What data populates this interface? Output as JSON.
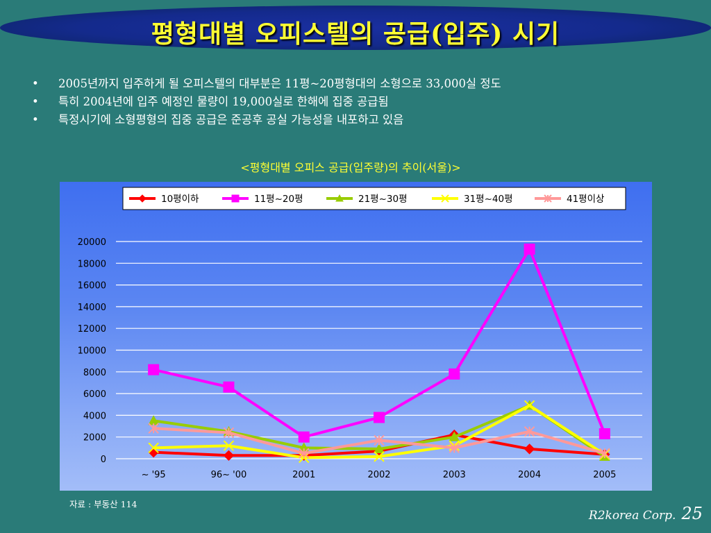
{
  "slide": {
    "title": "평형대별 오피스텔의 공급(입주) 시기",
    "bullets": [
      "2005년까지 입주하게 될 오피스텔의 대부분은 11평~20평형대의 소형으로 33,000실 정도",
      "특히 2004년에 입주 예정인 물량이 19,000실로 한해에 집중 공급됨",
      "특정시기에 소형평형의 집중 공급은 준공후 공실 가능성을 내포하고 있음"
    ],
    "source": "자료 : 부동산 114",
    "footer_corp": "R2korea Corp.",
    "page_number": "25"
  },
  "colors": {
    "background": "#2a7b78",
    "title_text": "#ffff33",
    "title_band": "#142a8c"
  },
  "chart_data": {
    "type": "line",
    "title": "<평형대별 오피스 공급(입주량)의 추이(서울)>",
    "categories": [
      "~ '95",
      "96~ '00",
      "2001",
      "2002",
      "2003",
      "2004",
      "2005"
    ],
    "ylim": [
      0,
      20000
    ],
    "yticks": [
      0,
      2000,
      4000,
      6000,
      8000,
      10000,
      12000,
      14000,
      16000,
      18000,
      20000
    ],
    "grid": true,
    "legend_position": "top",
    "series": [
      {
        "name": "10평이하",
        "color": "#ff0000",
        "marker": "diamond",
        "values": [
          600,
          300,
          300,
          700,
          2200,
          900,
          400
        ]
      },
      {
        "name": "11평~20평",
        "color": "#ff00ff",
        "marker": "square",
        "values": [
          8200,
          6600,
          2000,
          3800,
          7800,
          19300,
          2300
        ]
      },
      {
        "name": "21평~30평",
        "color": "#99cc00",
        "marker": "triangle",
        "values": [
          3500,
          2500,
          1000,
          900,
          2000,
          4900,
          200
        ]
      },
      {
        "name": "31평~40평",
        "color": "#ffff00",
        "marker": "x",
        "values": [
          1000,
          1200,
          100,
          200,
          1200,
          4900,
          400
        ]
      },
      {
        "name": "41평이상",
        "color": "#ff9999",
        "marker": "star",
        "values": [
          2800,
          2400,
          500,
          1700,
          1000,
          2500,
          500
        ]
      }
    ]
  }
}
